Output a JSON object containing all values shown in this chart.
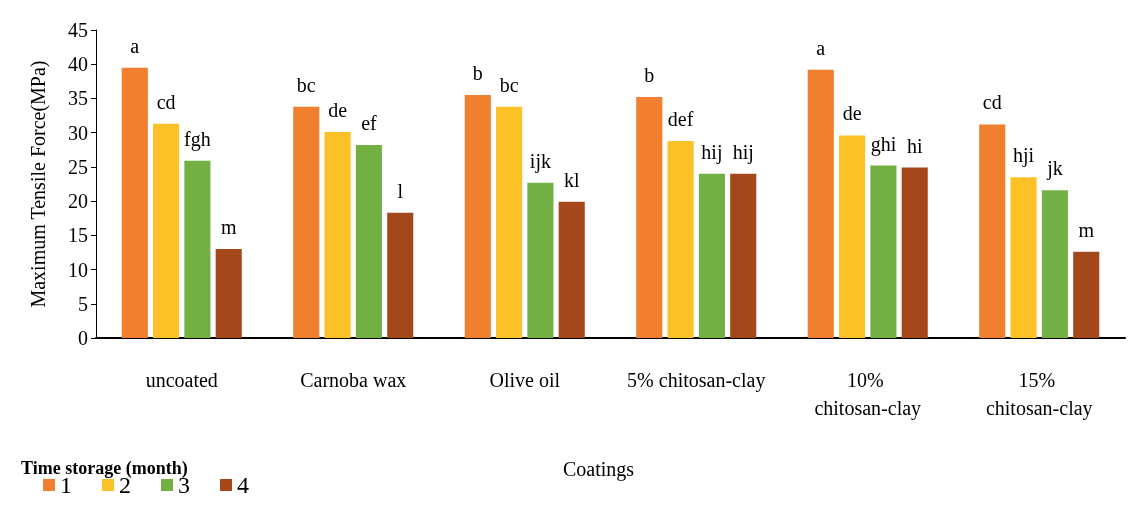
{
  "chart_data": {
    "type": "bar",
    "xlabel": "Coatings",
    "ylabel": "Maximum Tensile Force(MPa)",
    "legend_title": "Time storage (month)",
    "categories": [
      "uncoated",
      "Carnoba wax",
      "Olive oil",
      "5% chitosan-clay",
      "10% chitosan-clay",
      "15% chitosan-clay"
    ],
    "series": [
      {
        "name": "1",
        "color": "#f07f2f",
        "values": [
          39.5,
          33.8,
          35.5,
          35.2,
          39.2,
          31.2
        ],
        "value_labels": [
          "a",
          "bc",
          "b",
          "b",
          "a",
          "cd"
        ]
      },
      {
        "name": "2",
        "color": "#fcc127",
        "values": [
          31.3,
          30.1,
          33.8,
          28.8,
          29.6,
          23.5
        ],
        "value_labels": [
          "cd",
          "de",
          "bc",
          "def",
          "de",
          "hji"
        ]
      },
      {
        "name": "3",
        "color": "#72b043",
        "values": [
          25.9,
          28.2,
          22.7,
          24.0,
          25.2,
          21.6
        ],
        "value_labels": [
          "fgh",
          "ef",
          "ijk",
          "hij",
          "ghi",
          "jk"
        ]
      },
      {
        "name": "4",
        "color": "#a4481c",
        "values": [
          13.0,
          18.3,
          19.9,
          24.0,
          24.9,
          12.6
        ],
        "value_labels": [
          "m",
          "l",
          "kl",
          "hij",
          "hi",
          "m"
        ]
      }
    ],
    "ylim": [
      0,
      45
    ],
    "yticks": [
      0,
      5,
      10,
      15,
      20,
      25,
      30,
      35,
      40,
      45
    ],
    "grid": false,
    "legend": "bottom left"
  }
}
